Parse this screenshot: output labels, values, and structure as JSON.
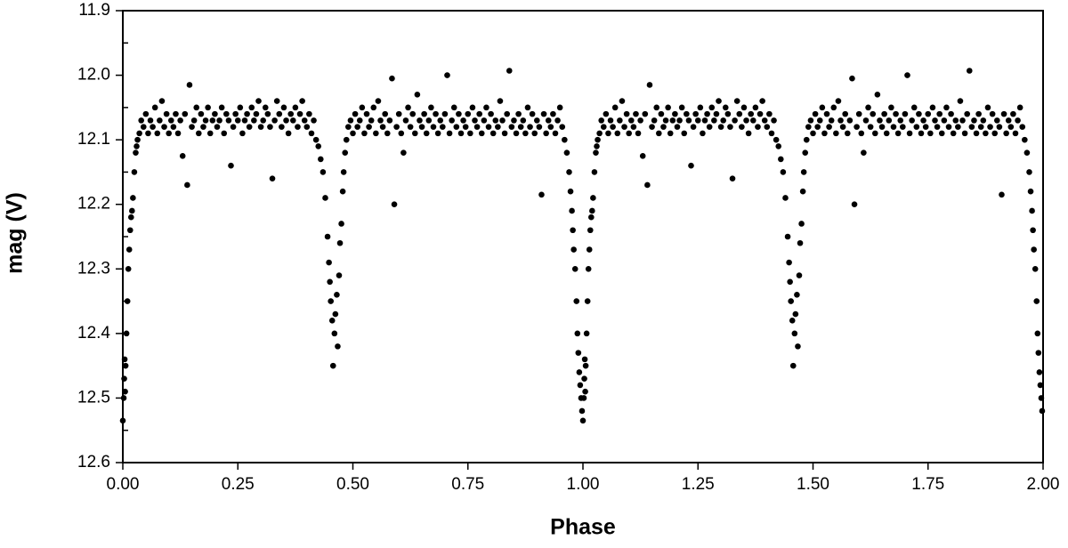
{
  "chart_data": {
    "type": "scatter",
    "xlabel": "Phase",
    "ylabel": "mag (V)",
    "color": "#000000",
    "xlim": [
      0,
      2
    ],
    "ylim": [
      12.6,
      11.9
    ],
    "xticks": [
      {
        "value": 0,
        "label": "0.00"
      },
      0.25,
      {
        "value": 0.5,
        "label": "0.50"
      },
      0.75,
      {
        "value": 1,
        "label": "1.00"
      },
      1.25,
      {
        "value": 1.5,
        "label": "1.50"
      },
      1.75,
      {
        "value": 2,
        "label": "2.00"
      }
    ],
    "yticks": [
      11.9,
      {
        "value": 12,
        "label": "12.0"
      },
      12.1,
      12.2,
      12.3,
      12.4,
      12.5,
      12.6
    ],
    "yminorticks": [
      11.95,
      12.05,
      12.15,
      12.25,
      12.35,
      12.45,
      12.55
    ],
    "x": [
      0.0,
      0.002,
      0.003,
      0.004,
      0.005,
      0.006,
      0.008,
      0.01,
      0.012,
      0.014,
      0.016,
      0.018,
      0.02,
      0.022,
      0.025,
      0.028,
      0.03,
      0.032,
      0.036,
      0.04,
      0.045,
      0.05,
      0.055,
      0.06,
      0.065,
      0.07,
      0.075,
      0.08,
      0.085,
      0.09,
      0.095,
      0.1,
      0.105,
      0.11,
      0.115,
      0.12,
      0.125,
      0.13,
      0.135,
      0.14,
      0.145,
      0.15,
      0.155,
      0.16,
      0.165,
      0.17,
      0.175,
      0.18,
      0.185,
      0.19,
      0.195,
      0.2,
      0.205,
      0.21,
      0.215,
      0.22,
      0.225,
      0.23,
      0.235,
      0.24,
      0.245,
      0.25,
      0.255,
      0.26,
      0.265,
      0.27,
      0.275,
      0.28,
      0.285,
      0.29,
      0.295,
      0.3,
      0.305,
      0.31,
      0.315,
      0.32,
      0.325,
      0.33,
      0.335,
      0.34,
      0.345,
      0.35,
      0.355,
      0.36,
      0.365,
      0.37,
      0.375,
      0.38,
      0.385,
      0.39,
      0.395,
      0.4,
      0.405,
      0.41,
      0.415,
      0.42,
      0.425,
      0.43,
      0.435,
      0.44,
      0.445,
      0.448,
      0.45,
      0.452,
      0.455,
      0.457,
      0.46,
      0.462,
      0.465,
      0.467,
      0.47,
      0.472,
      0.475,
      0.478,
      0.48,
      0.483,
      0.486,
      0.49,
      0.495,
      0.5,
      0.505,
      0.51,
      0.515,
      0.52,
      0.525,
      0.53,
      0.535,
      0.54,
      0.545,
      0.55,
      0.555,
      0.56,
      0.565,
      0.57,
      0.575,
      0.58,
      0.585,
      0.59,
      0.595,
      0.6,
      0.605,
      0.61,
      0.615,
      0.62,
      0.625,
      0.63,
      0.635,
      0.64,
      0.645,
      0.65,
      0.655,
      0.66,
      0.665,
      0.67,
      0.675,
      0.68,
      0.685,
      0.69,
      0.695,
      0.7,
      0.705,
      0.71,
      0.715,
      0.72,
      0.725,
      0.73,
      0.735,
      0.74,
      0.745,
      0.75,
      0.755,
      0.76,
      0.765,
      0.77,
      0.775,
      0.78,
      0.785,
      0.79,
      0.795,
      0.8,
      0.805,
      0.81,
      0.815,
      0.82,
      0.825,
      0.83,
      0.835,
      0.84,
      0.845,
      0.85,
      0.855,
      0.86,
      0.865,
      0.87,
      0.875,
      0.88,
      0.885,
      0.89,
      0.895,
      0.9,
      0.905,
      0.91,
      0.915,
      0.92,
      0.925,
      0.93,
      0.935,
      0.94,
      0.945,
      0.95,
      0.955,
      0.96,
      0.965,
      0.97,
      0.973,
      0.976,
      0.978,
      0.98,
      0.983,
      0.986,
      0.988,
      0.99,
      0.992,
      0.994,
      0.996,
      0.998,
      1.0,
      1.002,
      1.003,
      1.004,
      1.005,
      1.006,
      1.008,
      1.01,
      1.012,
      1.014,
      1.016,
      1.018,
      1.02,
      1.022,
      1.025,
      1.028,
      1.03,
      1.032,
      1.036,
      1.04,
      1.045,
      1.05,
      1.055,
      1.06,
      1.065,
      1.07,
      1.075,
      1.08,
      1.085,
      1.09,
      1.095,
      1.1,
      1.105,
      1.11,
      1.115,
      1.12,
      1.125,
      1.13,
      1.135,
      1.14,
      1.145,
      1.15,
      1.155,
      1.16,
      1.165,
      1.17,
      1.175,
      1.18,
      1.185,
      1.19,
      1.195,
      1.2,
      1.205,
      1.21,
      1.215,
      1.22,
      1.225,
      1.23,
      1.235,
      1.24,
      1.245,
      1.25,
      1.255,
      1.26,
      1.265,
      1.27,
      1.275,
      1.28,
      1.285,
      1.29,
      1.295,
      1.3,
      1.305,
      1.31,
      1.315,
      1.32,
      1.325,
      1.33,
      1.335,
      1.34,
      1.345,
      1.35,
      1.355,
      1.36,
      1.365,
      1.37,
      1.375,
      1.38,
      1.385,
      1.39,
      1.395,
      1.4,
      1.405,
      1.41,
      1.415,
      1.42,
      1.425,
      1.43,
      1.435,
      1.44,
      1.445,
      1.448,
      1.45,
      1.452,
      1.455,
      1.457,
      1.46,
      1.462,
      1.465,
      1.467,
      1.47,
      1.472,
      1.475,
      1.478,
      1.48,
      1.483,
      1.486,
      1.49,
      1.495,
      1.5,
      1.505,
      1.51,
      1.515,
      1.52,
      1.525,
      1.53,
      1.535,
      1.54,
      1.545,
      1.55,
      1.555,
      1.56,
      1.565,
      1.57,
      1.575,
      1.58,
      1.585,
      1.59,
      1.595,
      1.6,
      1.605,
      1.61,
      1.615,
      1.62,
      1.625,
      1.63,
      1.635,
      1.64,
      1.645,
      1.65,
      1.655,
      1.66,
      1.665,
      1.67,
      1.675,
      1.68,
      1.685,
      1.69,
      1.695,
      1.7,
      1.705,
      1.71,
      1.715,
      1.72,
      1.725,
      1.73,
      1.735,
      1.74,
      1.745,
      1.75,
      1.755,
      1.76,
      1.765,
      1.77,
      1.775,
      1.78,
      1.785,
      1.79,
      1.795,
      1.8,
      1.805,
      1.81,
      1.815,
      1.82,
      1.825,
      1.83,
      1.835,
      1.84,
      1.845,
      1.85,
      1.855,
      1.86,
      1.865,
      1.87,
      1.875,
      1.88,
      1.885,
      1.89,
      1.895,
      1.9,
      1.905,
      1.91,
      1.915,
      1.92,
      1.925,
      1.93,
      1.935,
      1.94,
      1.945,
      1.95,
      1.955,
      1.96,
      1.965,
      1.97,
      1.973,
      1.976,
      1.978,
      1.98,
      1.983,
      1.986,
      1.988,
      1.99,
      1.992,
      1.994,
      1.996,
      1.998
    ],
    "values": [
      12.535,
      12.5,
      12.47,
      12.44,
      12.49,
      12.45,
      12.4,
      12.35,
      12.3,
      12.27,
      12.24,
      12.22,
      12.21,
      12.19,
      12.15,
      12.12,
      12.11,
      12.1,
      12.09,
      12.07,
      12.08,
      12.06,
      12.09,
      12.07,
      12.08,
      12.05,
      12.09,
      12.07,
      12.04,
      12.08,
      12.06,
      12.09,
      12.07,
      12.08,
      12.06,
      12.09,
      12.07,
      12.125,
      12.06,
      12.17,
      12.015,
      12.08,
      12.07,
      12.05,
      12.09,
      12.06,
      12.08,
      12.07,
      12.05,
      12.09,
      12.07,
      12.06,
      12.08,
      12.07,
      12.05,
      12.09,
      12.06,
      12.07,
      12.14,
      12.08,
      12.06,
      12.07,
      12.05,
      12.09,
      12.07,
      12.06,
      12.08,
      12.05,
      12.07,
      12.06,
      12.04,
      12.08,
      12.07,
      12.05,
      12.06,
      12.08,
      12.16,
      12.07,
      12.04,
      12.06,
      12.08,
      12.05,
      12.07,
      12.09,
      12.06,
      12.07,
      12.05,
      12.08,
      12.06,
      12.04,
      12.07,
      12.08,
      12.06,
      12.09,
      12.07,
      12.1,
      12.11,
      12.13,
      12.15,
      12.19,
      12.25,
      12.29,
      12.32,
      12.35,
      12.38,
      12.45,
      12.4,
      12.37,
      12.34,
      12.42,
      12.31,
      12.26,
      12.23,
      12.18,
      12.15,
      12.12,
      12.1,
      12.08,
      12.07,
      12.09,
      12.06,
      12.08,
      12.07,
      12.05,
      12.09,
      12.06,
      12.08,
      12.07,
      12.05,
      12.09,
      12.04,
      12.07,
      12.08,
      12.06,
      12.09,
      12.07,
      12.005,
      12.2,
      12.08,
      12.06,
      12.09,
      12.12,
      12.07,
      12.05,
      12.08,
      12.06,
      12.09,
      12.03,
      12.07,
      12.08,
      12.06,
      12.09,
      12.07,
      12.05,
      12.08,
      12.06,
      12.09,
      12.07,
      12.08,
      12.06,
      12.0,
      12.09,
      12.07,
      12.05,
      12.08,
      12.06,
      12.09,
      12.07,
      12.08,
      12.06,
      12.09,
      12.05,
      12.07,
      12.08,
      12.06,
      12.09,
      12.07,
      12.05,
      12.08,
      12.06,
      12.09,
      12.07,
      12.08,
      12.04,
      12.07,
      12.09,
      12.06,
      11.993,
      12.08,
      12.07,
      12.09,
      12.06,
      12.08,
      12.07,
      12.09,
      12.05,
      12.08,
      12.06,
      12.09,
      12.07,
      12.08,
      12.185,
      12.06,
      12.09,
      12.07,
      12.08,
      12.06,
      12.09,
      12.07,
      12.05,
      12.08,
      12.1,
      12.12,
      12.15,
      12.18,
      12.21,
      12.24,
      12.27,
      12.3,
      12.35,
      12.4,
      12.43,
      12.46,
      12.48,
      12.5,
      12.52,
      12.535,
      12.5,
      12.47,
      12.44,
      12.49,
      12.45,
      12.4,
      12.35,
      12.3,
      12.27,
      12.24,
      12.22,
      12.21,
      12.19,
      12.15,
      12.12,
      12.11,
      12.1,
      12.09,
      12.07,
      12.08,
      12.06,
      12.09,
      12.07,
      12.08,
      12.05,
      12.09,
      12.07,
      12.04,
      12.08,
      12.06,
      12.09,
      12.07,
      12.08,
      12.06,
      12.09,
      12.07,
      12.125,
      12.06,
      12.17,
      12.015,
      12.08,
      12.07,
      12.05,
      12.09,
      12.06,
      12.08,
      12.07,
      12.05,
      12.09,
      12.07,
      12.06,
      12.08,
      12.07,
      12.05,
      12.09,
      12.06,
      12.07,
      12.14,
      12.08,
      12.06,
      12.07,
      12.05,
      12.09,
      12.07,
      12.06,
      12.08,
      12.05,
      12.07,
      12.06,
      12.04,
      12.08,
      12.07,
      12.05,
      12.06,
      12.08,
      12.16,
      12.07,
      12.04,
      12.06,
      12.08,
      12.05,
      12.07,
      12.09,
      12.06,
      12.07,
      12.05,
      12.08,
      12.06,
      12.04,
      12.07,
      12.08,
      12.06,
      12.09,
      12.07,
      12.1,
      12.11,
      12.13,
      12.15,
      12.19,
      12.25,
      12.29,
      12.32,
      12.35,
      12.38,
      12.45,
      12.4,
      12.37,
      12.34,
      12.42,
      12.31,
      12.26,
      12.23,
      12.18,
      12.15,
      12.12,
      12.1,
      12.08,
      12.07,
      12.09,
      12.06,
      12.08,
      12.07,
      12.05,
      12.09,
      12.06,
      12.08,
      12.07,
      12.05,
      12.09,
      12.04,
      12.07,
      12.08,
      12.06,
      12.09,
      12.07,
      12.005,
      12.2,
      12.08,
      12.06,
      12.09,
      12.12,
      12.07,
      12.05,
      12.08,
      12.06,
      12.09,
      12.03,
      12.07,
      12.08,
      12.06,
      12.09,
      12.07,
      12.05,
      12.08,
      12.06,
      12.09,
      12.07,
      12.08,
      12.06,
      12.0,
      12.09,
      12.07,
      12.05,
      12.08,
      12.06,
      12.09,
      12.07,
      12.08,
      12.06,
      12.09,
      12.05,
      12.07,
      12.08,
      12.06,
      12.09,
      12.07,
      12.05,
      12.08,
      12.06,
      12.09,
      12.07,
      12.08,
      12.04,
      12.07,
      12.09,
      12.06,
      11.993,
      12.08,
      12.07,
      12.09,
      12.06,
      12.08,
      12.07,
      12.09,
      12.05,
      12.08,
      12.06,
      12.09,
      12.07,
      12.08,
      12.185,
      12.06,
      12.09,
      12.07,
      12.08,
      12.06,
      12.09,
      12.07,
      12.05,
      12.08,
      12.1,
      12.12,
      12.15,
      12.18,
      12.21,
      12.24,
      12.27,
      12.3,
      12.35,
      12.4,
      12.43,
      12.46,
      12.48,
      12.5,
      12.52
    ]
  }
}
